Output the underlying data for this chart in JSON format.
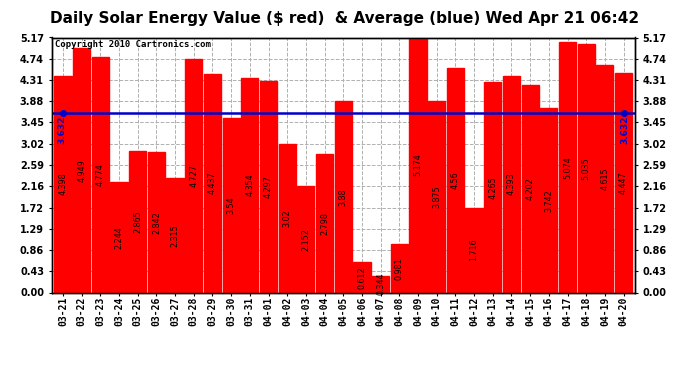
{
  "title": "Daily Solar Energy Value ($ red)  & Average (blue) Wed Apr 21 06:42",
  "copyright": "Copyright 2010 Cartronics.com",
  "average": 3.632,
  "bar_color": "#ff0000",
  "average_color": "#0000cc",
  "background_color": "#ffffff",
  "plot_background": "#ffffff",
  "grid_color": "#b0b0b0",
  "categories": [
    "03-21",
    "03-22",
    "03-23",
    "03-24",
    "03-25",
    "03-26",
    "03-27",
    "03-28",
    "03-29",
    "03-30",
    "03-31",
    "04-01",
    "04-02",
    "04-03",
    "04-04",
    "04-05",
    "04-06",
    "04-07",
    "04-08",
    "04-09",
    "04-10",
    "04-11",
    "04-12",
    "04-13",
    "04-14",
    "04-15",
    "04-16",
    "04-17",
    "04-18",
    "04-19",
    "04-20"
  ],
  "values": [
    4.398,
    4.949,
    4.774,
    2.244,
    2.865,
    2.842,
    2.315,
    4.727,
    4.437,
    3.54,
    4.354,
    4.297,
    3.02,
    2.152,
    2.798,
    3.88,
    0.612,
    0.344,
    0.981,
    5.174,
    3.875,
    4.56,
    1.716,
    4.265,
    4.393,
    4.202,
    3.742,
    5.074,
    5.035,
    4.615,
    4.447
  ],
  "ylim": [
    0.0,
    5.17
  ],
  "yticks": [
    0.0,
    0.43,
    0.86,
    1.29,
    1.72,
    2.16,
    2.59,
    3.02,
    3.45,
    3.88,
    4.31,
    4.74,
    5.17
  ],
  "title_fontsize": 11,
  "tick_fontsize": 7,
  "value_fontsize": 5.8,
  "copyright_fontsize": 6.5
}
